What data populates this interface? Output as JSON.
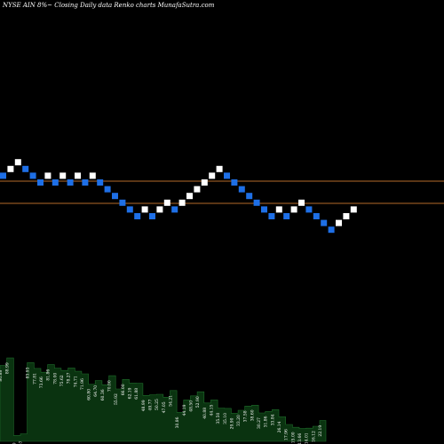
{
  "header": {
    "title": "NYSE AIN  8%~  Closing Daily data  Renko  charts MunafaSutra.com"
  },
  "colors": {
    "background": "#000000",
    "up_brick": "#ffffff",
    "down_brick": "#1e6fe6",
    "reference_line": "#b36a2a",
    "volume_fill": "#0a3310",
    "volume_edge": "#1e6b2a"
  },
  "chart_data": {
    "type": "renko",
    "brick_direction_sequence": [
      "down",
      "up",
      "up",
      "down",
      "down",
      "down",
      "up",
      "down",
      "up",
      "down",
      "up",
      "down",
      "up",
      "down",
      "down",
      "down",
      "down",
      "down",
      "down",
      "up",
      "down",
      "up",
      "up",
      "down",
      "up",
      "up",
      "up",
      "up",
      "up",
      "up",
      "down",
      "down",
      "down",
      "down",
      "down",
      "down",
      "down",
      "up",
      "down",
      "up",
      "up",
      "down",
      "down",
      "down",
      "down",
      "up",
      "up",
      "up"
    ],
    "brick_level_index": [
      6,
      7,
      8,
      7,
      6,
      5,
      6,
      5,
      6,
      5,
      6,
      5,
      6,
      5,
      4,
      3,
      2,
      1,
      0,
      1,
      0,
      1,
      2,
      1,
      2,
      3,
      4,
      5,
      6,
      7,
      6,
      5,
      4,
      3,
      2,
      1,
      0,
      1,
      0,
      1,
      2,
      1,
      0,
      -1,
      -2,
      -1,
      0,
      1
    ],
    "reference_lines": [
      "upper",
      "lower"
    ],
    "volume_labels": [
      "80.88",
      "88.99",
      "6.29",
      "8.07",
      "83.93",
      "77.81",
      "73.66",
      "81.86",
      "78.00",
      "75.62",
      "78.27",
      "74.71",
      "71.96",
      "60.80",
      "64.70",
      "60.36",
      "70.00",
      "55.92",
      "66.00",
      "62.19",
      "61.88",
      "48.99",
      "49.77",
      "50.25",
      "47.05",
      "54.21",
      "30.86",
      "44.19",
      "48.50",
      "52.90",
      "40.88",
      "44.15",
      "35.50",
      "35.10",
      "29.90",
      "33.20",
      "37.58",
      "38.60",
      "30.27",
      "31.86",
      "33.84",
      "26.14",
      "17.96",
      "15.00",
      "13.66",
      "14.01",
      "16.12",
      "22.19"
    ]
  }
}
